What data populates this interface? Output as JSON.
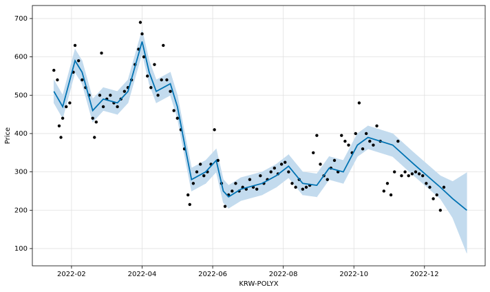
{
  "chart_data": {
    "type": "forecast",
    "xlabel": "KRW-POLYX",
    "ylabel": "Price",
    "xlim": [
      0.89,
      13.72
    ],
    "ylim": [
      55,
      734
    ],
    "xticks": [
      {
        "value": 2,
        "label": "2022-02"
      },
      {
        "value": 4,
        "label": "2022-04"
      },
      {
        "value": 6,
        "label": "2022-06"
      },
      {
        "value": 8,
        "label": "2022-08"
      },
      {
        "value": 10,
        "label": "2022-10"
      },
      {
        "value": 12,
        "label": "2022-12"
      }
    ],
    "yticks": [
      100,
      200,
      300,
      400,
      500,
      600,
      700
    ],
    "grid": true,
    "forecast": {
      "color": "#0072b2",
      "band_color": "#c3dbee",
      "x": [
        1.5,
        1.75,
        2.1,
        2.3,
        2.6,
        2.9,
        3.3,
        3.6,
        4.0,
        4.2,
        4.4,
        4.8,
        5.0,
        5.25,
        5.4,
        5.8,
        6.1,
        6.3,
        6.45,
        6.8,
        7.4,
        7.8,
        8.15,
        8.55,
        8.95,
        9.3,
        9.7,
        10.1,
        10.4,
        11.1,
        11.7,
        12.45,
        12.8,
        13.2
      ],
      "values": [
        510,
        470,
        590,
        560,
        460,
        490,
        480,
        510,
        640,
        560,
        510,
        530,
        470,
        350,
        280,
        300,
        330,
        250,
        235,
        255,
        270,
        290,
        315,
        270,
        265,
        310,
        300,
        370,
        390,
        370,
        320,
        260,
        230,
        200
      ],
      "upper": [
        540,
        500,
        620,
        590,
        490,
        520,
        510,
        540,
        670,
        590,
        540,
        560,
        500,
        380,
        310,
        330,
        360,
        280,
        265,
        285,
        300,
        320,
        345,
        300,
        295,
        340,
        330,
        400,
        420,
        400,
        350,
        290,
        275,
        298
      ],
      "lower": [
        480,
        440,
        560,
        530,
        430,
        460,
        450,
        480,
        610,
        530,
        480,
        500,
        440,
        320,
        250,
        270,
        300,
        220,
        205,
        225,
        240,
        260,
        285,
        240,
        235,
        280,
        270,
        340,
        360,
        340,
        290,
        230,
        180,
        88
      ]
    },
    "observed": {
      "color": "#000000",
      "x": [
        1.5,
        1.6,
        1.65,
        1.7,
        1.75,
        1.85,
        1.95,
        2.05,
        2.1,
        2.2,
        2.3,
        2.4,
        2.5,
        2.6,
        2.65,
        2.7,
        2.8,
        2.85,
        2.9,
        3.0,
        3.1,
        3.2,
        3.3,
        3.4,
        3.5,
        3.6,
        3.7,
        3.8,
        3.9,
        3.95,
        4.0,
        4.05,
        4.15,
        4.25,
        4.35,
        4.45,
        4.55,
        4.6,
        4.7,
        4.8,
        4.9,
        5.0,
        5.1,
        5.2,
        5.3,
        5.35,
        5.45,
        5.55,
        5.65,
        5.75,
        5.85,
        5.95,
        6.05,
        6.15,
        6.25,
        6.35,
        6.45,
        6.55,
        6.65,
        6.75,
        6.85,
        6.95,
        7.05,
        7.15,
        7.25,
        7.35,
        7.45,
        7.55,
        7.65,
        7.75,
        7.85,
        7.95,
        8.05,
        8.15,
        8.25,
        8.35,
        8.45,
        8.55,
        8.65,
        8.75,
        8.85,
        8.95,
        9.05,
        9.15,
        9.25,
        9.35,
        9.45,
        9.55,
        9.65,
        9.75,
        9.85,
        9.95,
        10.05,
        10.15,
        10.25,
        10.35,
        10.45,
        10.55,
        10.65,
        10.75,
        10.85,
        10.95,
        11.05,
        11.15,
        11.25,
        11.35,
        11.45,
        11.55,
        11.65,
        11.75,
        11.85,
        11.95,
        12.05,
        12.15,
        12.25,
        12.35,
        12.45,
        12.55
      ],
      "values": [
        565,
        540,
        420,
        390,
        440,
        470,
        480,
        560,
        630,
        590,
        540,
        520,
        500,
        440,
        390,
        430,
        500,
        610,
        470,
        490,
        500,
        480,
        470,
        490,
        510,
        520,
        540,
        580,
        620,
        690,
        660,
        600,
        550,
        520,
        580,
        500,
        540,
        630,
        540,
        510,
        460,
        440,
        410,
        360,
        240,
        215,
        270,
        300,
        320,
        290,
        300,
        320,
        410,
        330,
        270,
        210,
        240,
        250,
        270,
        250,
        260,
        255,
        280,
        260,
        255,
        290,
        270,
        280,
        300,
        310,
        295,
        320,
        325,
        300,
        270,
        260,
        280,
        255,
        260,
        265,
        350,
        395,
        320,
        290,
        280,
        310,
        330,
        300,
        395,
        380,
        370,
        350,
        400,
        480,
        360,
        400,
        380,
        370,
        420,
        380,
        250,
        270,
        240,
        300,
        380,
        290,
        300,
        290,
        295,
        300,
        295,
        290,
        270,
        260,
        230,
        240,
        200,
        260
      ]
    }
  }
}
